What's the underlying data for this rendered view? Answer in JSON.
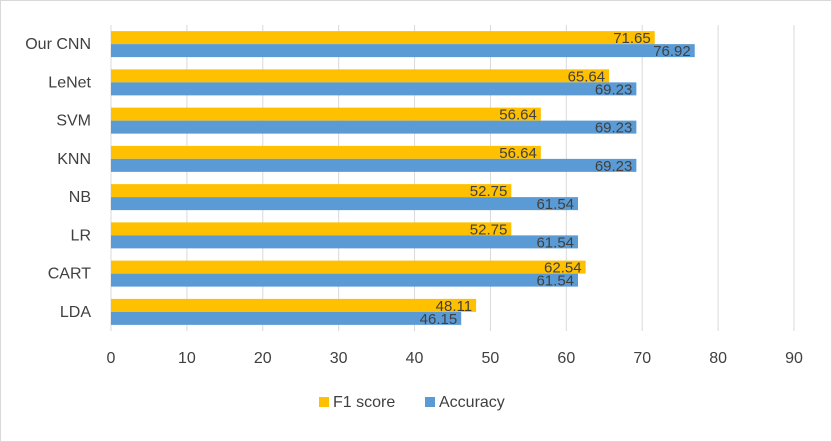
{
  "chart_data": {
    "type": "bar",
    "orientation": "horizontal",
    "categories": [
      "Our CNN",
      "LeNet",
      "SVM",
      "KNN",
      "NB",
      "LR",
      "CART",
      "LDA"
    ],
    "series": [
      {
        "name": "F1 score",
        "color": "#FFC000",
        "values": [
          71.65,
          65.64,
          56.64,
          56.64,
          52.75,
          52.75,
          62.54,
          48.11
        ],
        "labels": [
          "71.65",
          "65.64",
          "56.64",
          "56.64",
          "52.75",
          "52.75",
          "62.54",
          "48.11"
        ]
      },
      {
        "name": "Accuracy",
        "color": "#5B9BD5",
        "values": [
          76.92,
          69.23,
          69.23,
          69.23,
          61.54,
          61.54,
          61.54,
          46.15
        ],
        "labels": [
          "76.92",
          "69.23",
          "69.23",
          "69.23",
          "61.54",
          "61.54",
          "61.54",
          "46.15"
        ]
      }
    ],
    "title": "",
    "xlabel": "",
    "ylabel": "",
    "xlim": [
      0,
      90
    ],
    "xticks": [
      "0",
      "10",
      "20",
      "30",
      "40",
      "50",
      "60",
      "70",
      "80",
      "90"
    ],
    "grid": true,
    "legend_position": "bottom",
    "gridline_color": "#d9d9d9"
  }
}
